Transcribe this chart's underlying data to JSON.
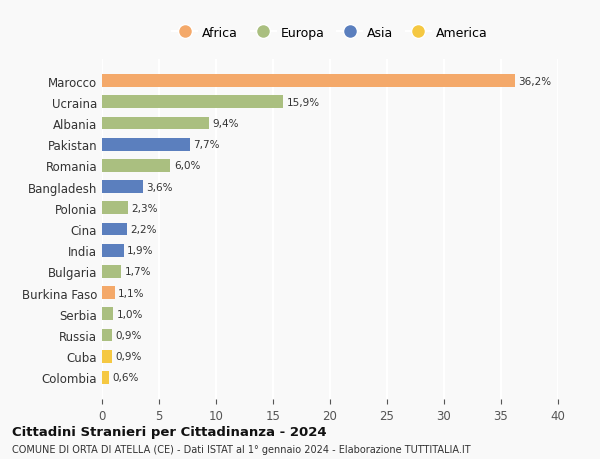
{
  "countries": [
    "Colombia",
    "Cuba",
    "Russia",
    "Serbia",
    "Burkina Faso",
    "Bulgaria",
    "India",
    "Cina",
    "Polonia",
    "Bangladesh",
    "Romania",
    "Pakistan",
    "Albania",
    "Ucraina",
    "Marocco"
  ],
  "values": [
    0.6,
    0.9,
    0.9,
    1.0,
    1.1,
    1.7,
    1.9,
    2.2,
    2.3,
    3.6,
    6.0,
    7.7,
    9.4,
    15.9,
    36.2
  ],
  "labels": [
    "0,6%",
    "0,9%",
    "0,9%",
    "1,0%",
    "1,1%",
    "1,7%",
    "1,9%",
    "2,2%",
    "2,3%",
    "3,6%",
    "6,0%",
    "7,7%",
    "9,4%",
    "15,9%",
    "36,2%"
  ],
  "bar_colors": [
    "#F5C842",
    "#F5C842",
    "#AABF80",
    "#AABF80",
    "#F4A96A",
    "#AABF80",
    "#5B7FBE",
    "#5B7FBE",
    "#AABF80",
    "#5B7FBE",
    "#AABF80",
    "#5B7FBE",
    "#AABF80",
    "#AABF80",
    "#F4A96A"
  ],
  "continent_colors": {
    "Africa": "#F4A96A",
    "Europa": "#AABF80",
    "Asia": "#5B7FBE",
    "America": "#F5C842"
  },
  "legend_order": [
    "Africa",
    "Europa",
    "Asia",
    "America"
  ],
  "xlim": [
    0,
    40
  ],
  "xticks": [
    0,
    5,
    10,
    15,
    20,
    25,
    30,
    35,
    40
  ],
  "title": "Cittadini Stranieri per Cittadinanza - 2024",
  "subtitle": "COMUNE DI ORTA DI ATELLA (CE) - Dati ISTAT al 1° gennaio 2024 - Elaborazione TUTTITALIA.IT",
  "background_color": "#f9f9f9",
  "grid_color": "#ffffff"
}
